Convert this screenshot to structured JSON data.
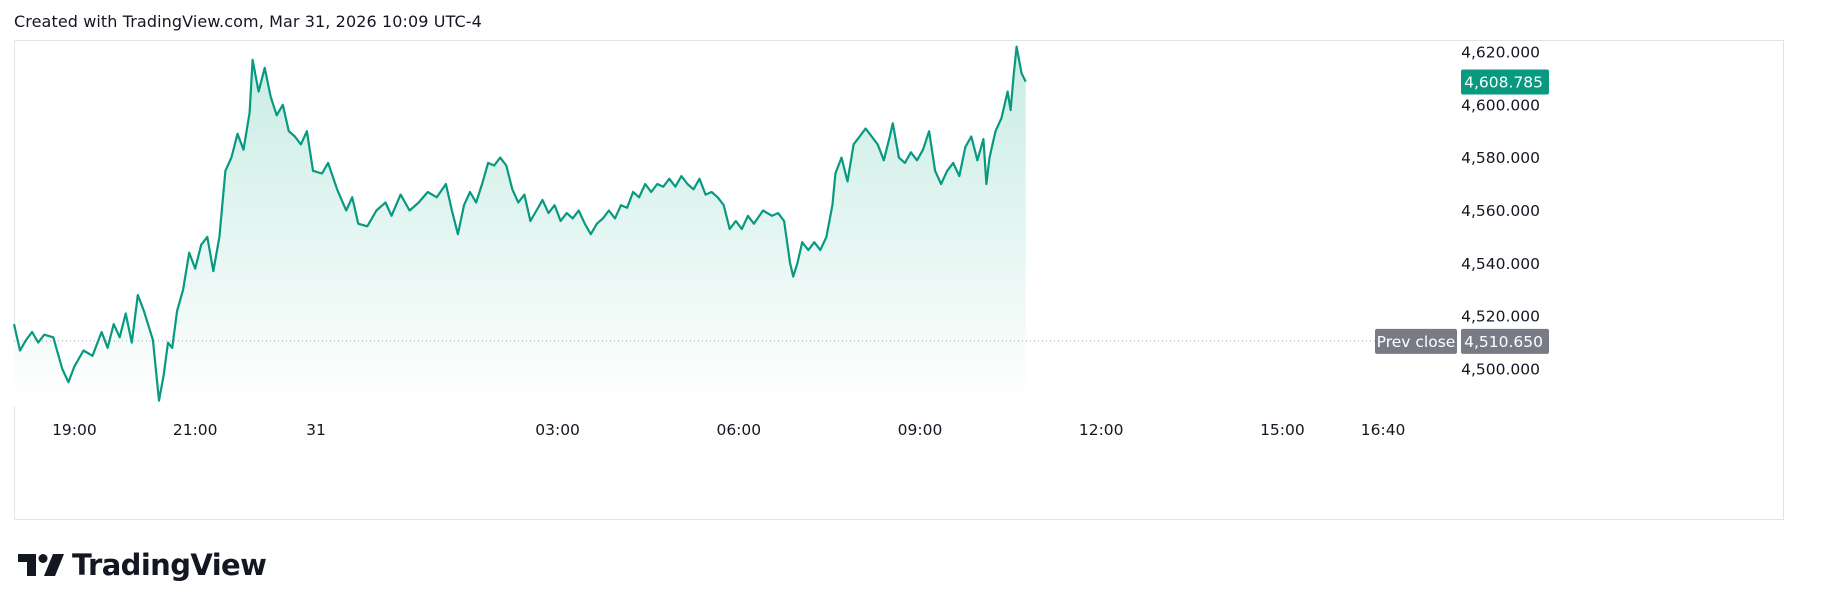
{
  "header": {
    "text": "Created with TradingView.com, Mar 31, 2026 10:09 UTC-4"
  },
  "brand": {
    "name": "TradingView",
    "icon": "tradingview-logo-icon"
  },
  "colors": {
    "line": "#089981",
    "fill_top": "#c8ece3",
    "fill_bottom": "#ffffff",
    "last_badge": "#089981",
    "prev_close_badge": "#787b86",
    "prev_close_line": "#a3a6af",
    "grid": "#e0e3eb"
  },
  "chart_data": {
    "type": "area",
    "title": "",
    "xlabel": "",
    "ylabel": "",
    "x_ticks": [
      "19:00",
      "21:00",
      "31",
      "03:00",
      "06:00",
      "09:00",
      "12:00",
      "15:00",
      "16:40"
    ],
    "y_ticks": [
      "4,620.000",
      "4,600.000",
      "4,580.000",
      "4,560.000",
      "4,540.000",
      "4,520.000",
      "4,500.000"
    ],
    "ylim": [
      4486,
      4623
    ],
    "x_unit": "hours since 18:00 on Mar 30",
    "grid": false,
    "last_value": 4608.785,
    "last_value_label": "4,608.785",
    "prev_close": 4510.65,
    "prev_close_label": "4,510.650",
    "prev_close_text": "Prev close",
    "series": [
      {
        "values": [
          [
            0.0,
            4517
          ],
          [
            0.1,
            4507
          ],
          [
            0.2,
            4511
          ],
          [
            0.3,
            4514
          ],
          [
            0.4,
            4510
          ],
          [
            0.5,
            4513
          ],
          [
            0.65,
            4512
          ],
          [
            0.8,
            4500
          ],
          [
            0.9,
            4495
          ],
          [
            1.0,
            4501
          ],
          [
            1.15,
            4507
          ],
          [
            1.3,
            4505
          ],
          [
            1.45,
            4514
          ],
          [
            1.55,
            4508
          ],
          [
            1.65,
            4517
          ],
          [
            1.75,
            4512
          ],
          [
            1.85,
            4521
          ],
          [
            1.95,
            4510
          ],
          [
            2.05,
            4528
          ],
          [
            2.15,
            4522
          ],
          [
            2.3,
            4511
          ],
          [
            2.4,
            4488
          ],
          [
            2.48,
            4498
          ],
          [
            2.55,
            4510
          ],
          [
            2.62,
            4508
          ],
          [
            2.7,
            4522
          ],
          [
            2.8,
            4530
          ],
          [
            2.9,
            4544
          ],
          [
            3.0,
            4538
          ],
          [
            3.1,
            4547
          ],
          [
            3.2,
            4550
          ],
          [
            3.3,
            4537
          ],
          [
            3.4,
            4550
          ],
          [
            3.5,
            4575
          ],
          [
            3.6,
            4580
          ],
          [
            3.7,
            4589
          ],
          [
            3.8,
            4583
          ],
          [
            3.9,
            4597
          ],
          [
            3.95,
            4617
          ],
          [
            4.05,
            4605
          ],
          [
            4.15,
            4614
          ],
          [
            4.25,
            4603
          ],
          [
            4.35,
            4596
          ],
          [
            4.45,
            4600
          ],
          [
            4.55,
            4590
          ],
          [
            4.65,
            4588
          ],
          [
            4.75,
            4585
          ],
          [
            4.85,
            4590
          ],
          [
            4.95,
            4575
          ],
          [
            5.1,
            4574
          ],
          [
            5.2,
            4578
          ],
          [
            5.35,
            4568
          ],
          [
            5.5,
            4560
          ],
          [
            5.6,
            4565
          ],
          [
            5.7,
            4555
          ],
          [
            5.85,
            4554
          ],
          [
            6.0,
            4560
          ],
          [
            6.15,
            4563
          ],
          [
            6.25,
            4558
          ],
          [
            6.4,
            4566
          ],
          [
            6.55,
            4560
          ],
          [
            6.7,
            4563
          ],
          [
            6.85,
            4567
          ],
          [
            7.0,
            4565
          ],
          [
            7.15,
            4570
          ],
          [
            7.25,
            4560
          ],
          [
            7.35,
            4551
          ],
          [
            7.45,
            4562
          ],
          [
            7.55,
            4567
          ],
          [
            7.65,
            4563
          ],
          [
            7.75,
            4570
          ],
          [
            7.85,
            4578
          ],
          [
            7.95,
            4577
          ],
          [
            8.05,
            4580
          ],
          [
            8.15,
            4577
          ],
          [
            8.25,
            4568
          ],
          [
            8.35,
            4563
          ],
          [
            8.45,
            4566
          ],
          [
            8.55,
            4556
          ],
          [
            8.65,
            4560
          ],
          [
            8.75,
            4564
          ],
          [
            8.85,
            4559
          ],
          [
            8.95,
            4562
          ],
          [
            9.05,
            4556
          ],
          [
            9.15,
            4559
          ],
          [
            9.25,
            4557
          ],
          [
            9.35,
            4560
          ],
          [
            9.45,
            4555
          ],
          [
            9.55,
            4551
          ],
          [
            9.65,
            4555
          ],
          [
            9.75,
            4557
          ],
          [
            9.85,
            4560
          ],
          [
            9.95,
            4557
          ],
          [
            10.05,
            4562
          ],
          [
            10.15,
            4561
          ],
          [
            10.25,
            4567
          ],
          [
            10.35,
            4565
          ],
          [
            10.45,
            4570
          ],
          [
            10.55,
            4567
          ],
          [
            10.65,
            4570
          ],
          [
            10.75,
            4569
          ],
          [
            10.85,
            4572
          ],
          [
            10.95,
            4569
          ],
          [
            11.05,
            4573
          ],
          [
            11.15,
            4570
          ],
          [
            11.25,
            4568
          ],
          [
            11.35,
            4572
          ],
          [
            11.45,
            4566
          ],
          [
            11.55,
            4567
          ],
          [
            11.65,
            4565
          ],
          [
            11.75,
            4562
          ],
          [
            11.85,
            4553
          ],
          [
            11.95,
            4556
          ],
          [
            12.05,
            4553
          ],
          [
            12.15,
            4558
          ],
          [
            12.25,
            4555
          ],
          [
            12.4,
            4560
          ],
          [
            12.55,
            4558
          ],
          [
            12.65,
            4559
          ],
          [
            12.75,
            4556
          ],
          [
            12.85,
            4540
          ],
          [
            12.9,
            4535
          ],
          [
            12.97,
            4540
          ],
          [
            13.05,
            4548
          ],
          [
            13.15,
            4545
          ],
          [
            13.25,
            4548
          ],
          [
            13.35,
            4545
          ],
          [
            13.45,
            4550
          ],
          [
            13.55,
            4562
          ],
          [
            13.6,
            4574
          ],
          [
            13.7,
            4580
          ],
          [
            13.8,
            4571
          ],
          [
            13.9,
            4585
          ],
          [
            14.0,
            4588
          ],
          [
            14.1,
            4591
          ],
          [
            14.2,
            4588
          ],
          [
            14.3,
            4585
          ],
          [
            14.4,
            4579
          ],
          [
            14.5,
            4588
          ],
          [
            14.55,
            4593
          ],
          [
            14.65,
            4580
          ],
          [
            14.75,
            4578
          ],
          [
            14.85,
            4582
          ],
          [
            14.95,
            4579
          ],
          [
            15.05,
            4583
          ],
          [
            15.15,
            4590
          ],
          [
            15.25,
            4575
          ],
          [
            15.35,
            4570
          ],
          [
            15.45,
            4575
          ],
          [
            15.55,
            4578
          ],
          [
            15.65,
            4573
          ],
          [
            15.75,
            4584
          ],
          [
            15.85,
            4588
          ],
          [
            15.95,
            4579
          ],
          [
            16.05,
            4587
          ],
          [
            16.1,
            4570
          ],
          [
            16.15,
            4580
          ],
          [
            16.25,
            4590
          ],
          [
            16.35,
            4595
          ],
          [
            16.45,
            4605
          ],
          [
            16.5,
            4598
          ],
          [
            16.55,
            4611
          ],
          [
            16.6,
            4622
          ],
          [
            16.68,
            4612
          ],
          [
            16.75,
            4608.785
          ]
        ]
      }
    ]
  }
}
